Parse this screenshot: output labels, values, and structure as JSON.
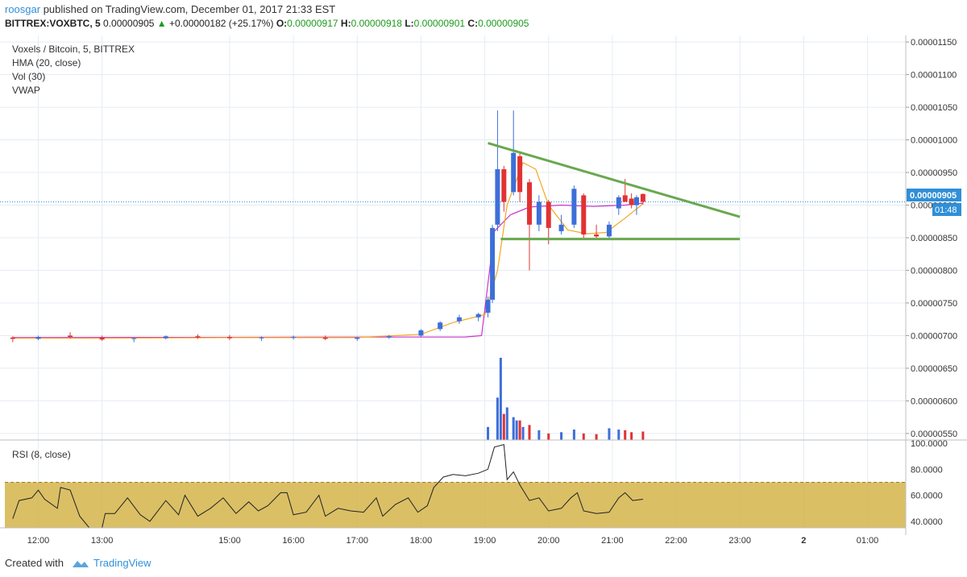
{
  "header": {
    "user": "roosgar",
    "published": " published on TradingView.com, December 01, 2017 21:33 EST",
    "symbol": "BITTREX:VOXBTC, 5",
    "last": "0.00000905",
    "change": "+0.00000182 (+25.17%)",
    "o_label": "O:",
    "o": "0.00000917",
    "h_label": "H:",
    "h": "0.00000918",
    "l_label": "L:",
    "l": "0.00000901",
    "c_label": "C:",
    "c": "0.00000905"
  },
  "legend": {
    "title": "Voxels / Bitcoin, 5, BITTREX",
    "hma": "HMA (20, close)",
    "vol": "Vol (30)",
    "vwap": "VWAP",
    "rsi": "RSI (8, close)"
  },
  "price_label": "0.00000905",
  "countdown": "01:48",
  "footer": {
    "created": "Created with",
    "brand": "TradingView"
  },
  "colors": {
    "up": "#3d6fd8",
    "down": "#e23232",
    "hma": "#f5a623",
    "vwap": "#cc33cc",
    "trend": "#6aa84f",
    "rsi_band": "#d4b44a",
    "accent": "#2f8fd8"
  },
  "chart_data": {
    "type": "candlestick",
    "price_axis": [
      "0.00001150",
      "0.00001100",
      "0.00001050",
      "0.00001000",
      "0.00000950",
      "0.00000900",
      "0.00000850",
      "0.00000800",
      "0.00000750",
      "0.00000700",
      "0.00000650",
      "0.00000600",
      "0.00000550"
    ],
    "price_range": [
      5.4e-06,
      1.16e-05
    ],
    "rsi_axis": [
      "100.0000",
      "80.0000",
      "60.0000",
      "40.0000"
    ],
    "rsi_range": [
      35,
      100
    ],
    "rsi_band": [
      30,
      70
    ],
    "time_axis": [
      "12:00",
      "13:00",
      "15:00",
      "16:00",
      "17:00",
      "18:00",
      "19:00",
      "20:00",
      "21:00",
      "22:00",
      "23:00",
      "2",
      "01:00"
    ],
    "time_hours": [
      12,
      13,
      15,
      16,
      17,
      18,
      19,
      20,
      21,
      22,
      23,
      24,
      25
    ],
    "trendlines": [
      {
        "from": [
          19.05,
          9.95e-06
        ],
        "to": [
          23.0,
          8.82e-06
        ]
      },
      {
        "from": [
          19.25,
          8.48e-06
        ],
        "to": [
          23.0,
          8.48e-06
        ]
      }
    ],
    "candles": [
      [
        11.6,
        6.97e-06,
        6.99e-06,
        6.9e-06,
        6.95e-06
      ],
      [
        12.0,
        6.95e-06,
        7e-06,
        6.93e-06,
        6.98e-06
      ],
      [
        12.5,
        7e-06,
        7.05e-06,
        6.96e-06,
        6.98e-06
      ],
      [
        13.0,
        6.97e-06,
        7e-06,
        6.92e-06,
        6.94e-06
      ],
      [
        13.5,
        6.95e-06,
        6.98e-06,
        6.9e-06,
        6.96e-06
      ],
      [
        14.0,
        6.96e-06,
        7e-06,
        6.94e-06,
        6.99e-06
      ],
      [
        14.5,
        6.99e-06,
        7.02e-06,
        6.95e-06,
        6.97e-06
      ],
      [
        15.0,
        6.98e-06,
        7.01e-06,
        6.93e-06,
        6.96e-06
      ],
      [
        15.5,
        6.96e-06,
        6.99e-06,
        6.92e-06,
        6.97e-06
      ],
      [
        16.0,
        6.97e-06,
        7e-06,
        6.94e-06,
        6.98e-06
      ],
      [
        16.5,
        6.97e-06,
        7e-06,
        6.93e-06,
        6.95e-06
      ],
      [
        17.0,
        6.95e-06,
        6.98e-06,
        6.92e-06,
        6.97e-06
      ],
      [
        17.5,
        6.97e-06,
        7.01e-06,
        6.95e-06,
        6.99e-06
      ],
      [
        18.0,
        7e-06,
        7.1e-06,
        6.98e-06,
        7.08e-06
      ],
      [
        18.3,
        7.1e-06,
        7.22e-06,
        7.07e-06,
        7.2e-06
      ],
      [
        18.6,
        7.22e-06,
        7.32e-06,
        7.18e-06,
        7.28e-06
      ],
      [
        18.9,
        7.28e-06,
        7.35e-06,
        7.22e-06,
        7.33e-06
      ],
      [
        19.05,
        7.35e-06,
        7.6e-06,
        7.28e-06,
        7.55e-06
      ],
      [
        19.12,
        7.55e-06,
        8.7e-06,
        7.5e-06,
        8.65e-06
      ],
      [
        19.2,
        8.7e-06,
        1.045e-05,
        8.6e-06,
        9.55e-06
      ],
      [
        19.3,
        9.55e-06,
        9.6e-06,
        8.9e-06,
        9.05e-06
      ],
      [
        19.45,
        9.2e-06,
        1.045e-05,
        9.15e-06,
        9.8e-06
      ],
      [
        19.55,
        9.75e-06,
        9.8e-06,
        9.05e-06,
        9.2e-06
      ],
      [
        19.7,
        9.35e-06,
        9.4e-06,
        8e-06,
        8.7e-06
      ],
      [
        19.85,
        8.7e-06,
        9.15e-06,
        8.6e-06,
        9.05e-06
      ],
      [
        20.0,
        9.05e-06,
        9.08e-06,
        8.4e-06,
        8.65e-06
      ],
      [
        20.2,
        8.6e-06,
        8.85e-06,
        8.55e-06,
        8.7e-06
      ],
      [
        20.4,
        8.7e-06,
        9.3e-06,
        8.65e-06,
        9.25e-06
      ],
      [
        20.55,
        9.15e-06,
        9.18e-06,
        8.5e-06,
        8.55e-06
      ],
      [
        20.75,
        8.55e-06,
        8.7e-06,
        8.5e-06,
        8.52e-06
      ],
      [
        20.95,
        8.52e-06,
        8.75e-06,
        8.5e-06,
        8.7e-06
      ],
      [
        21.1,
        8.95e-06,
        9.15e-06,
        8.85e-06,
        9.12e-06
      ],
      [
        21.2,
        9.15e-06,
        9.4e-06,
        9.05e-06,
        9.05e-06
      ],
      [
        21.3,
        9.1e-06,
        9.18e-06,
        8.95e-06,
        9e-06
      ],
      [
        21.38,
        9e-06,
        9.15e-06,
        8.85e-06,
        9.12e-06
      ],
      [
        21.48,
        9.17e-06,
        9.18e-06,
        9.01e-06,
        9.05e-06
      ]
    ],
    "hma": [
      [
        11.6,
        6.96e-06
      ],
      [
        13,
        6.96e-06
      ],
      [
        15,
        6.97e-06
      ],
      [
        17,
        6.97e-06
      ],
      [
        18,
        7.02e-06
      ],
      [
        18.5,
        7.2e-06
      ],
      [
        19,
        7.32e-06
      ],
      [
        19.2,
        8e-06
      ],
      [
        19.35,
        9e-06
      ],
      [
        19.6,
        9.65e-06
      ],
      [
        19.8,
        9.55e-06
      ],
      [
        20,
        9e-06
      ],
      [
        20.3,
        8.62e-06
      ],
      [
        20.6,
        8.56e-06
      ],
      [
        20.9,
        8.58e-06
      ],
      [
        21.2,
        8.8e-06
      ],
      [
        21.48,
        9.02e-06
      ]
    ],
    "vwap": [
      [
        11.6,
        6.97e-06
      ],
      [
        18.7,
        6.98e-06
      ],
      [
        18.95,
        7e-06
      ],
      [
        19.15,
        8.6e-06
      ],
      [
        19.4,
        8.85e-06
      ],
      [
        19.7,
        8.97e-06
      ],
      [
        20.2,
        9e-06
      ],
      [
        20.7,
        8.98e-06
      ],
      [
        21.2,
        9e-06
      ],
      [
        21.48,
        9.03e-06
      ]
    ],
    "rsi": [
      [
        11.6,
        42
      ],
      [
        11.7,
        56
      ],
      [
        11.9,
        58
      ],
      [
        12.0,
        64
      ],
      [
        12.1,
        57
      ],
      [
        12.3,
        50
      ],
      [
        12.35,
        66
      ],
      [
        12.5,
        64
      ],
      [
        12.65,
        44
      ],
      [
        12.8,
        35
      ],
      [
        13.0,
        35
      ],
      [
        13.05,
        46
      ],
      [
        13.2,
        46
      ],
      [
        13.4,
        58
      ],
      [
        13.6,
        45
      ],
      [
        13.75,
        40
      ],
      [
        14.0,
        56
      ],
      [
        14.2,
        45
      ],
      [
        14.3,
        60
      ],
      [
        14.5,
        44
      ],
      [
        14.7,
        50
      ],
      [
        14.9,
        58
      ],
      [
        15.1,
        46
      ],
      [
        15.3,
        55
      ],
      [
        15.45,
        48
      ],
      [
        15.6,
        52
      ],
      [
        15.8,
        62
      ],
      [
        15.9,
        62
      ],
      [
        16.0,
        45
      ],
      [
        16.2,
        47
      ],
      [
        16.4,
        60
      ],
      [
        16.5,
        44
      ],
      [
        16.7,
        50
      ],
      [
        16.9,
        48
      ],
      [
        17.1,
        47
      ],
      [
        17.3,
        58
      ],
      [
        17.4,
        44
      ],
      [
        17.6,
        53
      ],
      [
        17.8,
        58
      ],
      [
        17.95,
        47
      ],
      [
        18.1,
        52
      ],
      [
        18.2,
        66
      ],
      [
        18.35,
        74
      ],
      [
        18.5,
        76
      ],
      [
        18.7,
        75
      ],
      [
        18.9,
        77
      ],
      [
        19.05,
        80
      ],
      [
        19.15,
        97
      ],
      [
        19.3,
        99
      ],
      [
        19.35,
        72
      ],
      [
        19.45,
        78
      ],
      [
        19.55,
        68
      ],
      [
        19.7,
        56
      ],
      [
        19.85,
        58
      ],
      [
        20.0,
        48
      ],
      [
        20.2,
        50
      ],
      [
        20.35,
        58
      ],
      [
        20.45,
        62
      ],
      [
        20.55,
        48
      ],
      [
        20.75,
        46
      ],
      [
        20.95,
        47
      ],
      [
        21.1,
        58
      ],
      [
        21.2,
        62
      ],
      [
        21.32,
        56
      ],
      [
        21.48,
        57
      ]
    ],
    "volume": [
      [
        19.05,
        5.6e-06
      ],
      [
        19.2,
        6.05e-06
      ],
      [
        19.25,
        6.66e-06
      ],
      [
        19.3,
        5.8e-06
      ],
      [
        19.35,
        5.9e-06
      ],
      [
        19.45,
        5.75e-06
      ],
      [
        19.5,
        5.7e-06
      ],
      [
        19.55,
        5.7e-06
      ],
      [
        19.6,
        5.6e-06
      ],
      [
        19.7,
        5.63e-06
      ],
      [
        19.85,
        5.55e-06
      ],
      [
        20.0,
        5.5e-06
      ],
      [
        20.2,
        5.52e-06
      ],
      [
        20.4,
        5.56e-06
      ],
      [
        20.55,
        5.5e-06
      ],
      [
        20.75,
        5.49e-06
      ],
      [
        20.95,
        5.58e-06
      ],
      [
        21.1,
        5.56e-06
      ],
      [
        21.2,
        5.55e-06
      ],
      [
        21.3,
        5.52e-06
      ],
      [
        21.48,
        5.53e-06
      ]
    ]
  }
}
